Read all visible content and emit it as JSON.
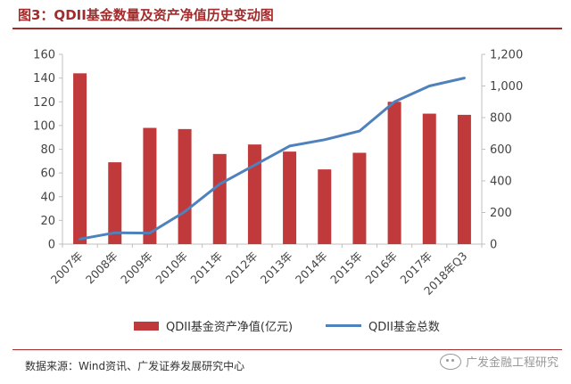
{
  "header": {
    "title": "图3：QDII基金数量及资产净值历史变动图"
  },
  "chart_data": {
    "type": "bar",
    "categories": [
      "2007年",
      "2008年",
      "2009年",
      "2010年",
      "2011年",
      "2012年",
      "2013年",
      "2014年",
      "2015年",
      "2016年",
      "2017年",
      "2018年Q3"
    ],
    "series": [
      {
        "name": "QDII基金资产净值(亿元)",
        "type": "bar",
        "axis": "left",
        "color": "#c0393b",
        "values": [
          144,
          69,
          98,
          97,
          76,
          84,
          78,
          63,
          77,
          120,
          110,
          109
        ]
      },
      {
        "name": "QDII基金总数",
        "type": "line",
        "axis": "right",
        "color": "#4f81bd",
        "values": [
          32,
          72,
          70,
          205,
          380,
          500,
          620,
          660,
          715,
          900,
          1000,
          1050
        ]
      }
    ],
    "left_axis": {
      "min": 0,
      "max": 160,
      "ticks": [
        "0",
        "20",
        "40",
        "60",
        "80",
        "100",
        "120",
        "140",
        "160"
      ]
    },
    "right_axis": {
      "min": 0,
      "max": 1200,
      "ticks": [
        "0",
        "200",
        "400",
        "600",
        "800",
        "1,000",
        "1,200"
      ]
    },
    "legend_position": "bottom",
    "grid": false
  },
  "footer": {
    "source": "数据来源：Wind资讯、广发证券发展研究中心",
    "watermark": "广发金融工程研究"
  }
}
